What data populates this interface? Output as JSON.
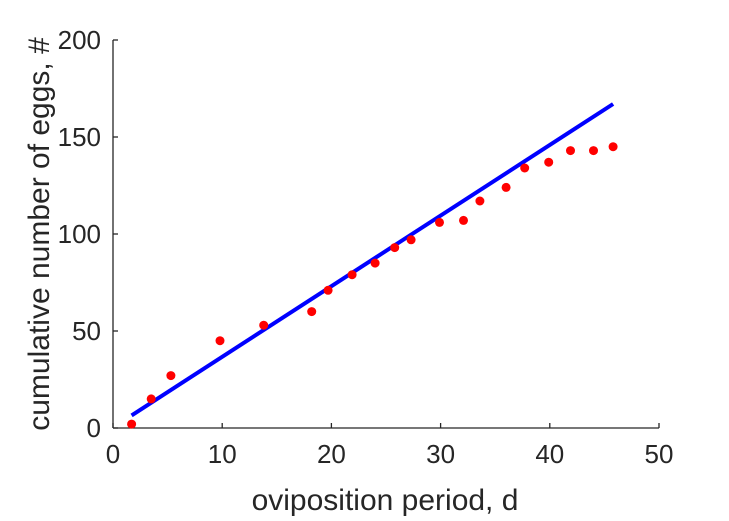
{
  "chart_data": {
    "type": "scatter",
    "title": "",
    "xlabel": "oviposition period, d",
    "ylabel": "cumulative number of eggs, #",
    "xlim": [
      0,
      50
    ],
    "ylim": [
      0,
      200
    ],
    "xticks": [
      0,
      10,
      20,
      30,
      40,
      50
    ],
    "yticks": [
      0,
      50,
      100,
      150,
      200
    ],
    "xtick_labels": [
      "0",
      "10",
      "20",
      "30",
      "40",
      "50"
    ],
    "ytick_labels": [
      "0",
      "50",
      "100",
      "150",
      "200"
    ],
    "grid": false,
    "series": [
      {
        "kind": "points",
        "color": "#ff0000",
        "points": [
          [
            1.7,
            2
          ],
          [
            3.5,
            15
          ],
          [
            5.3,
            27
          ],
          [
            9.8,
            45
          ],
          [
            13.8,
            53
          ],
          [
            18.2,
            60
          ],
          [
            19.7,
            71
          ],
          [
            21.9,
            79
          ],
          [
            24.0,
            85
          ],
          [
            25.8,
            93
          ],
          [
            27.3,
            97
          ],
          [
            29.9,
            106
          ],
          [
            32.1,
            107
          ],
          [
            33.6,
            117
          ],
          [
            36.0,
            124
          ],
          [
            37.7,
            134
          ],
          [
            39.9,
            137
          ],
          [
            41.9,
            143
          ],
          [
            44.0,
            143
          ],
          [
            45.8,
            145
          ]
        ]
      },
      {
        "kind": "line",
        "color": "#0000ff",
        "points": [
          [
            1.7,
            6.5
          ],
          [
            45.8,
            167
          ]
        ]
      }
    ]
  }
}
